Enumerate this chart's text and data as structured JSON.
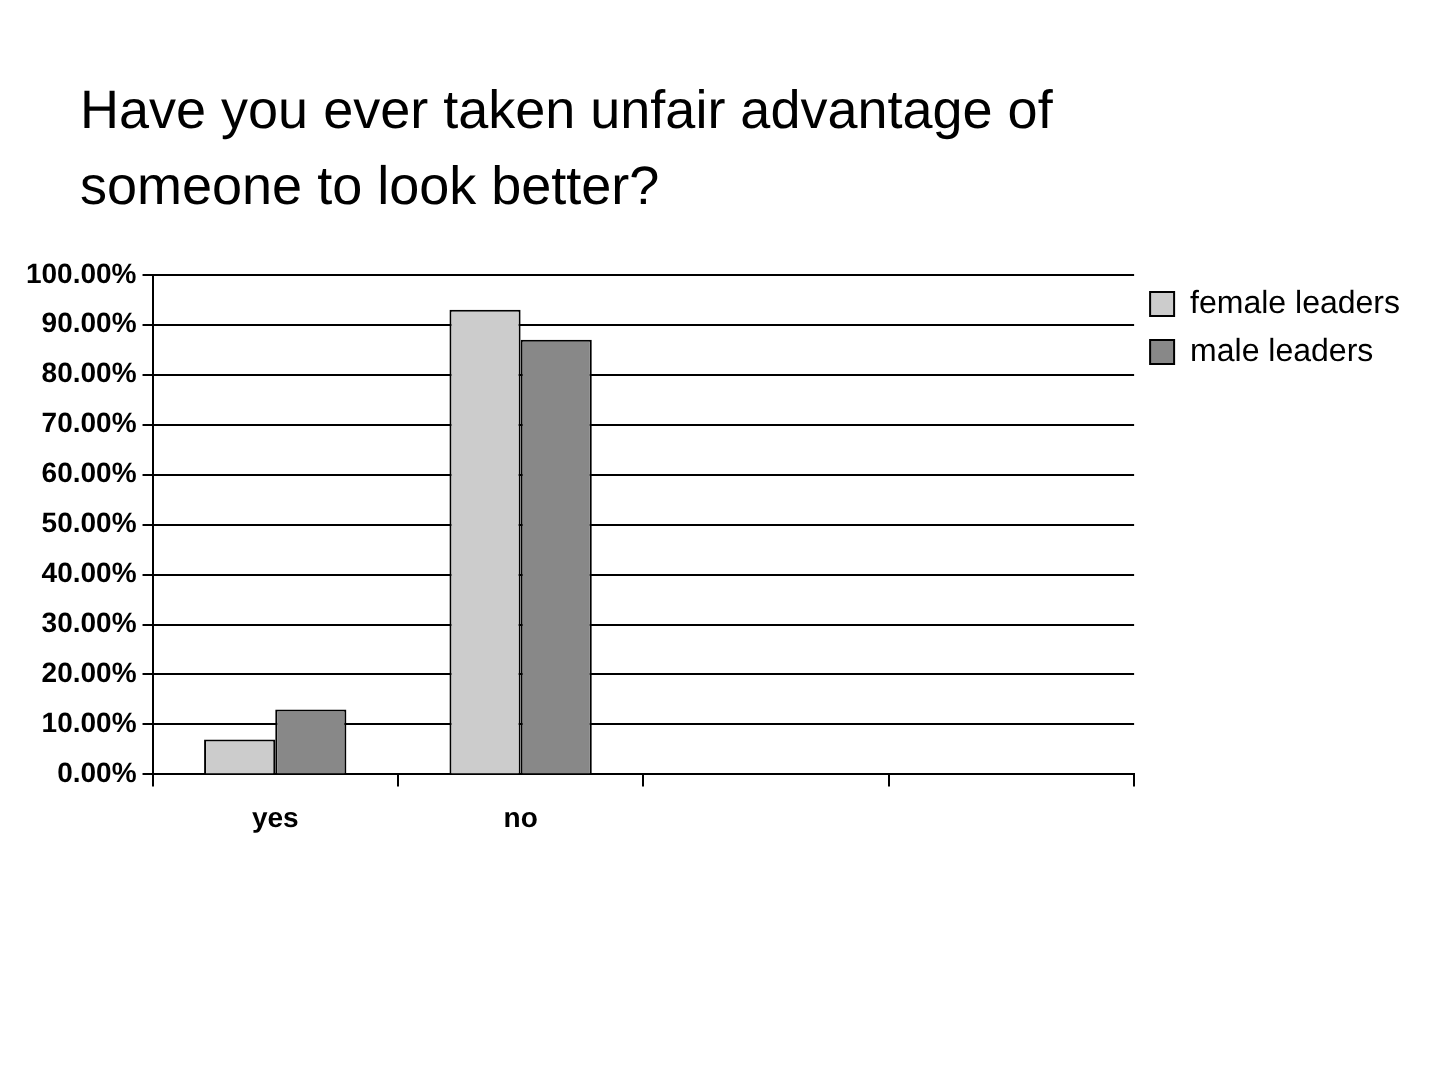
{
  "chart_data": {
    "type": "bar",
    "title": "Have you ever taken unfair advantage of someone to look better?",
    "categories": [
      "yes",
      "no",
      null,
      null
    ],
    "series": [
      {
        "name": "female leaders",
        "color": "#cccccc",
        "values": [
          7,
          93,
          null,
          null
        ]
      },
      {
        "name": "male leaders",
        "color": "#888888",
        "values": [
          13,
          87,
          null,
          null
        ]
      }
    ],
    "ylim": [
      0,
      100
    ],
    "yticks": [
      {
        "value": 0,
        "label": "0.00%"
      },
      {
        "value": 10,
        "label": "10.00%"
      },
      {
        "value": 20,
        "label": "20.00%"
      },
      {
        "value": 30,
        "label": "30.00%"
      },
      {
        "value": 40,
        "label": "40.00%"
      },
      {
        "value": 50,
        "label": "50.00%"
      },
      {
        "value": 60,
        "label": "60.00%"
      },
      {
        "value": 70,
        "label": "70.00%"
      },
      {
        "value": 80,
        "label": "80.00%"
      },
      {
        "value": 90,
        "label": "90.00%"
      },
      {
        "value": 100,
        "label": "100.00%"
      }
    ],
    "grid": "y",
    "legend": "right"
  }
}
